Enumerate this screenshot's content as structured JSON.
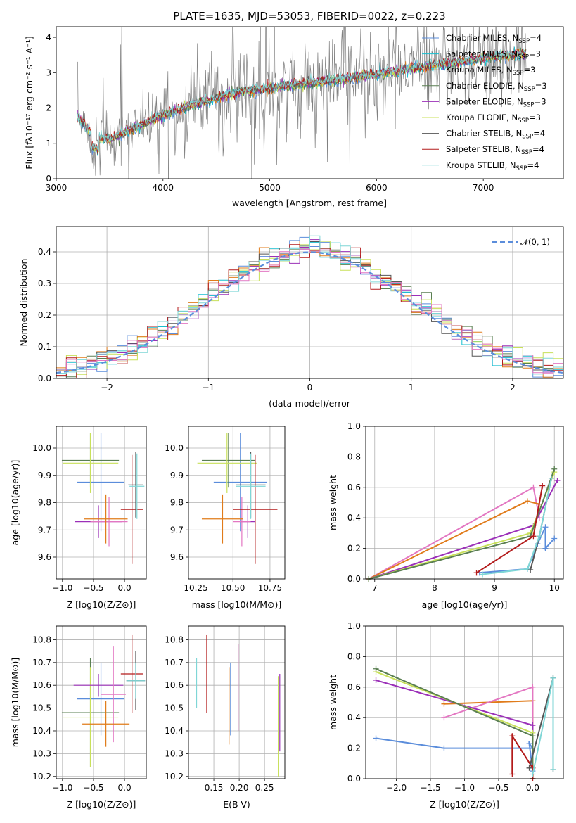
{
  "figure": {
    "title": "PLATE=1635, MJD=53053, FIBERID=0022, z=0.223"
  },
  "chart_data": [
    {
      "type": "line",
      "panel": "spectrum",
      "title": "PLATE=1635, MJD=53053, FIBERID=0022, z=0.223",
      "xlabel": "wavelength [Angstrom, rest frame]",
      "ylabel": "Flux [fλ10⁻¹⁷ erg cm⁻² s⁻¹ A⁻¹]",
      "xlim": [
        3000,
        7750
      ],
      "ylim": [
        0,
        4.3
      ],
      "xticks": [
        "3000",
        "4000",
        "5000",
        "6000",
        "7000"
      ],
      "yticks": [
        "0",
        "1",
        "2",
        "3",
        "4"
      ],
      "grid": false,
      "legend_position": "top-right",
      "data_envelope": {
        "wavelength": [
          3200,
          3350,
          3500,
          3700,
          4000,
          4300,
          4700,
          5000,
          5500,
          6000,
          6500,
          7000,
          7400
        ],
        "flux": [
          1.75,
          1.2,
          1.1,
          1.4,
          1.8,
          2.1,
          2.45,
          2.55,
          2.75,
          2.95,
          3.2,
          3.4,
          3.55
        ]
      },
      "series": [
        {
          "name": "Chabrier MILES, N_SSP=4",
          "color": "#5b8ddb"
        },
        {
          "name": "Salpeter MILES, N_SSP=3",
          "color": "#17becf"
        },
        {
          "name": "Kroupa MILES, N_SSP=3",
          "color": "#e07b1a"
        },
        {
          "name": "Chabrier ELODIE, N_SSP=3",
          "color": "#5a7f52"
        },
        {
          "name": "Salpeter ELODIE, N_SSP=3",
          "color": "#9b30b8"
        },
        {
          "name": "Kroupa ELODIE, N_SSP=3",
          "color": "#c8e05a"
        },
        {
          "name": "Chabrier STELIB, N_SSP=4",
          "color": "#555555"
        },
        {
          "name": "Salpeter STELIB, N_SSP=4",
          "color": "#b31b1b"
        },
        {
          "name": "Kroupa STELIB, N_SSP=4",
          "color": "#7fd6d6"
        }
      ],
      "legend_entries": [
        {
          "pre": "Chabrier MILES, N",
          "sub": "SSP",
          "post": "=4",
          "color": "#5b8ddb"
        },
        {
          "pre": "Salpeter MILES, N",
          "sub": "SSP",
          "post": "=3",
          "color": "#17becf"
        },
        {
          "pre": "Kroupa MILES, N",
          "sub": "SSP",
          "post": "=3",
          "color": "#e07b1a"
        },
        {
          "pre": "Chabrier ELODIE, N",
          "sub": "SSP",
          "post": "=3",
          "color": "#5a7f52"
        },
        {
          "pre": "Salpeter ELODIE, N",
          "sub": "SSP",
          "post": "=3",
          "color": "#9b30b8"
        },
        {
          "pre": "Kroupa ELODIE, N",
          "sub": "SSP",
          "post": "=3",
          "color": "#c8e05a"
        },
        {
          "pre": "Chabrier STELIB, N",
          "sub": "SSP",
          "post": "=4",
          "color": "#555555"
        },
        {
          "pre": "Salpeter STELIB, N",
          "sub": "SSP",
          "post": "=4",
          "color": "#b31b1b"
        },
        {
          "pre": "Kroupa STELIB, N",
          "sub": "SSP",
          "post": "=4",
          "color": "#7fd6d6"
        }
      ]
    },
    {
      "type": "line",
      "panel": "residuals",
      "xlabel": "(data-model)/error",
      "ylabel": "Normed distribution",
      "xlim": [
        -2.5,
        2.5
      ],
      "ylim": [
        0,
        0.48
      ],
      "xticks": [
        "−2",
        "−1",
        "0",
        "1",
        "2"
      ],
      "yticks": [
        "0.0",
        "0.1",
        "0.2",
        "0.3",
        "0.4"
      ],
      "grid": true,
      "legend_position": "top-right",
      "legend_label": "𝒩(0, 1)",
      "reference_curve": {
        "name": "N(0,1)",
        "mean": 0,
        "sigma": 1,
        "color": "#5b8ddb",
        "dashed": true
      },
      "histogram_bin_width": 0.1
    },
    {
      "type": "scatter",
      "panel": "Z vs age",
      "xlabel": "Z [log10(Z/Z⊙)]",
      "ylabel": "age [log10(age/yr)]",
      "xlim": [
        -1.1,
        0.35
      ],
      "ylim": [
        9.52,
        10.08
      ],
      "xticks": [
        "−1.0",
        "−0.5",
        "0.0"
      ],
      "yticks": [
        "9.6",
        "9.7",
        "9.8",
        "9.9",
        "10.0"
      ],
      "grid": true,
      "points": [
        {
          "x": -0.38,
          "xerr": 0.38,
          "y": 9.875,
          "yerr": 0.18,
          "color": "#5b8ddb"
        },
        {
          "x": -0.55,
          "xerr": 0.46,
          "y": 9.955,
          "yerr": 0.1,
          "color": "#5a7f52"
        },
        {
          "x": -0.55,
          "xerr": 0.45,
          "y": 9.945,
          "yerr": 0.11,
          "color": "#c8e05a"
        },
        {
          "x": -0.42,
          "xerr": 0.38,
          "y": 9.73,
          "yerr": 0.06,
          "color": "#9b30b8"
        },
        {
          "x": -0.25,
          "xerr": 0.3,
          "y": 9.73,
          "yerr": 0.09,
          "color": "#e377c2"
        },
        {
          "x": -0.3,
          "xerr": 0.35,
          "y": 9.74,
          "yerr": 0.09,
          "color": "#e07b1a"
        },
        {
          "x": 0.12,
          "xerr": 0.18,
          "y": 9.775,
          "yerr": 0.2,
          "color": "#b31b1b"
        },
        {
          "x": 0.18,
          "xerr": 0.12,
          "y": 9.865,
          "yerr": 0.12,
          "color": "#555555"
        },
        {
          "x": 0.2,
          "xerr": 0.12,
          "y": 9.86,
          "yerr": 0.12,
          "color": "#7fd6d6"
        }
      ]
    },
    {
      "type": "scatter",
      "panel": "mass vs age",
      "xlabel": "mass [log10(M/M⊙)]",
      "ylim": [
        9.52,
        10.08
      ],
      "xlim": [
        10.2,
        10.85
      ],
      "xticks": [
        "10.25",
        "10.50",
        "10.75"
      ],
      "yticks": [
        "9.6",
        "9.7",
        "9.8",
        "9.9",
        "10.0"
      ],
      "grid": true,
      "points": [
        {
          "x": 10.55,
          "xerr": 0.18,
          "y": 9.875,
          "yerr": 0.18,
          "color": "#5b8ddb"
        },
        {
          "x": 10.47,
          "xerr": 0.18,
          "y": 9.955,
          "yerr": 0.1,
          "color": "#5a7f52"
        },
        {
          "x": 10.46,
          "xerr": 0.2,
          "y": 9.945,
          "yerr": 0.11,
          "color": "#c8e05a"
        },
        {
          "x": 10.6,
          "xerr": 0.05,
          "y": 9.73,
          "yerr": 0.06,
          "color": "#9b30b8"
        },
        {
          "x": 10.56,
          "xerr": 0.06,
          "y": 9.73,
          "yerr": 0.09,
          "color": "#e377c2"
        },
        {
          "x": 10.43,
          "xerr": 0.14,
          "y": 9.74,
          "yerr": 0.09,
          "color": "#e07b1a"
        },
        {
          "x": 10.65,
          "xerr": 0.15,
          "y": 9.775,
          "yerr": 0.2,
          "color": "#b31b1b"
        },
        {
          "x": 10.62,
          "xerr": 0.1,
          "y": 9.865,
          "yerr": 0.12,
          "color": "#555555"
        },
        {
          "x": 10.62,
          "xerr": 0.1,
          "y": 9.86,
          "yerr": 0.12,
          "color": "#7fd6d6"
        }
      ]
    },
    {
      "type": "line",
      "panel": "age vs mass weight",
      "xlabel": "age [log10(age/yr)]",
      "ylabel": "mass weight",
      "xlim": [
        6.85,
        10.15
      ],
      "ylim": [
        0,
        1.0
      ],
      "xticks": [
        "7",
        "8",
        "9",
        "10"
      ],
      "yticks": [
        "0.0",
        "0.2",
        "0.4",
        "0.6",
        "0.8",
        "1.0"
      ],
      "grid": true,
      "series": [
        {
          "color": "#5b8ddb",
          "x": [
            8.75,
            9.55,
            9.72,
            9.85,
            9.85,
            10.0
          ],
          "y": [
            0.04,
            0.065,
            0.23,
            0.34,
            0.2,
            0.265
          ]
        },
        {
          "color": "#e377c2",
          "x": [
            6.9,
            9.65,
            9.75
          ],
          "y": [
            0.0,
            0.6,
            0.4
          ]
        },
        {
          "color": "#e07b1a",
          "x": [
            6.9,
            9.55,
            9.75
          ],
          "y": [
            0.0,
            0.51,
            0.49
          ]
        },
        {
          "color": "#9b30b8",
          "x": [
            6.9,
            9.65,
            10.05
          ],
          "y": [
            0.0,
            0.35,
            0.645
          ]
        },
        {
          "color": "#c8e05a",
          "x": [
            6.9,
            9.6,
            10.0
          ],
          "y": [
            0.0,
            0.3,
            0.7
          ]
        },
        {
          "color": "#5a7f52",
          "x": [
            6.9,
            9.6,
            10.0
          ],
          "y": [
            0.0,
            0.28,
            0.72
          ]
        },
        {
          "color": "#b31b1b",
          "x": [
            8.7,
            9.65,
            9.8
          ],
          "y": [
            0.04,
            0.28,
            0.61
          ]
        },
        {
          "color": "#555555",
          "x": [
            9.6,
            9.75,
            9.95
          ],
          "y": [
            0.06,
            0.28,
            0.66
          ]
        },
        {
          "color": "#7fd6d6",
          "x": [
            8.8,
            9.55,
            9.75,
            9.95
          ],
          "y": [
            0.03,
            0.065,
            0.28,
            0.66
          ]
        }
      ]
    },
    {
      "type": "scatter",
      "panel": "Z vs mass",
      "xlabel": "Z [log10(Z/Z⊙)]",
      "ylabel": "mass [log10(M/M⊙)]",
      "xlim": [
        -1.1,
        0.35
      ],
      "ylim": [
        10.19,
        10.86
      ],
      "xticks": [
        "−1.0",
        "−0.5",
        "0.0"
      ],
      "yticks": [
        "10.2",
        "10.3",
        "10.4",
        "10.5",
        "10.6",
        "10.7",
        "10.8"
      ],
      "grid": true,
      "points": [
        {
          "x": -0.38,
          "xerr": 0.38,
          "y": 10.54,
          "yerr": 0.16,
          "color": "#5b8ddb"
        },
        {
          "x": -0.55,
          "xerr": 0.46,
          "y": 10.48,
          "yerr": 0.24,
          "color": "#5a7f52"
        },
        {
          "x": -0.55,
          "xerr": 0.45,
          "y": 10.46,
          "yerr": 0.22,
          "color": "#c8e05a"
        },
        {
          "x": -0.42,
          "xerr": 0.4,
          "y": 10.6,
          "yerr": 0.05,
          "color": "#9b30b8"
        },
        {
          "x": -0.18,
          "xerr": 0.2,
          "y": 10.56,
          "yerr": 0.21,
          "color": "#e377c2"
        },
        {
          "x": -0.3,
          "xerr": 0.38,
          "y": 10.43,
          "yerr": 0.1,
          "color": "#e07b1a"
        },
        {
          "x": 0.12,
          "xerr": 0.18,
          "y": 10.65,
          "yerr": 0.17,
          "color": "#b31b1b"
        },
        {
          "x": 0.18,
          "xerr": 0.15,
          "y": 10.62,
          "yerr": 0.13,
          "color": "#555555"
        },
        {
          "x": 0.18,
          "xerr": 0.15,
          "y": 10.62,
          "yerr": 0.08,
          "color": "#7fd6d6"
        }
      ]
    },
    {
      "type": "scatter",
      "panel": "E(B-V) vs mass",
      "xlabel": "E(B-V)",
      "xlim": [
        0.1,
        0.29
      ],
      "ylim": [
        10.19,
        10.86
      ],
      "xticks": [
        "0.15",
        "0.20",
        "0.25"
      ],
      "yticks": [
        "10.2",
        "10.3",
        "10.4",
        "10.5",
        "10.6",
        "10.7",
        "10.8"
      ],
      "grid": true,
      "points": [
        {
          "x": 0.115,
          "y": 10.61,
          "yerr": 0.11,
          "color": "#5a7f52"
        },
        {
          "x": 0.116,
          "y": 10.61,
          "yerr": 0.11,
          "color": "#7fd6d6"
        },
        {
          "x": 0.136,
          "y": 10.65,
          "yerr": 0.17,
          "color": "#b31b1b"
        },
        {
          "x": 0.18,
          "y": 10.51,
          "yerr": 0.17,
          "color": "#e07b1a"
        },
        {
          "x": 0.183,
          "y": 10.54,
          "yerr": 0.16,
          "color": "#5b8ddb"
        },
        {
          "x": 0.198,
          "y": 10.59,
          "yerr": 0.19,
          "color": "#e377c2"
        },
        {
          "x": 0.277,
          "y": 10.42,
          "yerr": 0.22,
          "color": "#c8e05a"
        },
        {
          "x": 0.28,
          "y": 10.48,
          "yerr": 0.17,
          "color": "#9b30b8"
        }
      ]
    },
    {
      "type": "line",
      "panel": "Z vs mass weight",
      "xlabel": "Z [log10(Z/Z⊙)]",
      "ylabel": "mass weight",
      "xlim": [
        -2.45,
        0.45
      ],
      "ylim": [
        0,
        1.0
      ],
      "xticks": [
        "−2.0",
        "−1.5",
        "−1.0",
        "−0.5",
        "0.0"
      ],
      "yticks": [
        "0.0",
        "0.2",
        "0.4",
        "0.6",
        "0.8",
        "1.0"
      ],
      "grid": true,
      "series": [
        {
          "color": "#5b8ddb",
          "x": [
            -2.3,
            -1.3,
            0.0,
            -0.05,
            0.0
          ],
          "y": [
            0.265,
            0.2,
            0.2,
            0.23,
            0.05
          ]
        },
        {
          "color": "#e07b1a",
          "x": [
            -1.3,
            0.0,
            0.0
          ],
          "y": [
            0.49,
            0.51,
            0.0
          ]
        },
        {
          "color": "#e377c2",
          "x": [
            -1.3,
            0.0,
            0.0
          ],
          "y": [
            0.4,
            0.6,
            0.0
          ]
        },
        {
          "color": "#9b30b8",
          "x": [
            -2.3,
            0.0,
            0.0
          ],
          "y": [
            0.645,
            0.35,
            0.0
          ]
        },
        {
          "color": "#c8e05a",
          "x": [
            -2.3,
            0.0,
            0.0
          ],
          "y": [
            0.7,
            0.3,
            0.0
          ]
        },
        {
          "color": "#5a7f52",
          "x": [
            -2.3,
            0.0,
            0.0
          ],
          "y": [
            0.72,
            0.28,
            0.0
          ]
        },
        {
          "color": "#b31b1b",
          "x": [
            -0.3,
            -0.3,
            0.0,
            0.0
          ],
          "y": [
            0.03,
            0.28,
            0.07,
            0.0
          ]
        },
        {
          "color": "#555555",
          "x": [
            -0.05,
            0.3,
            0.3
          ],
          "y": [
            0.07,
            0.66,
            0.06
          ]
        },
        {
          "color": "#7fd6d6",
          "x": [
            0.0,
            0.3,
            0.3
          ],
          "y": [
            0.03,
            0.66,
            0.06
          ]
        }
      ]
    }
  ]
}
